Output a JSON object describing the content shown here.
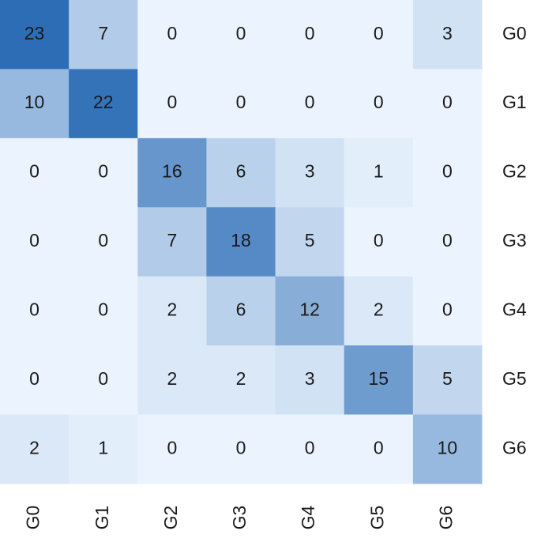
{
  "chart_data": {
    "type": "heatmap",
    "x_categories": [
      "G0",
      "G1",
      "G2",
      "G3",
      "G4",
      "G5",
      "G6"
    ],
    "y_categories": [
      "G0",
      "G1",
      "G2",
      "G3",
      "G4",
      "G5",
      "G6"
    ],
    "values": [
      [
        23,
        7,
        0,
        0,
        0,
        0,
        3
      ],
      [
        10,
        22,
        0,
        0,
        0,
        0,
        0
      ],
      [
        0,
        0,
        16,
        6,
        3,
        1,
        0
      ],
      [
        0,
        0,
        7,
        18,
        5,
        0,
        0
      ],
      [
        0,
        0,
        2,
        6,
        12,
        2,
        0
      ],
      [
        0,
        0,
        2,
        2,
        3,
        15,
        5
      ],
      [
        2,
        1,
        0,
        0,
        0,
        0,
        10
      ]
    ],
    "colormap": [
      "#ebf4fe",
      "#2d6db6"
    ]
  }
}
